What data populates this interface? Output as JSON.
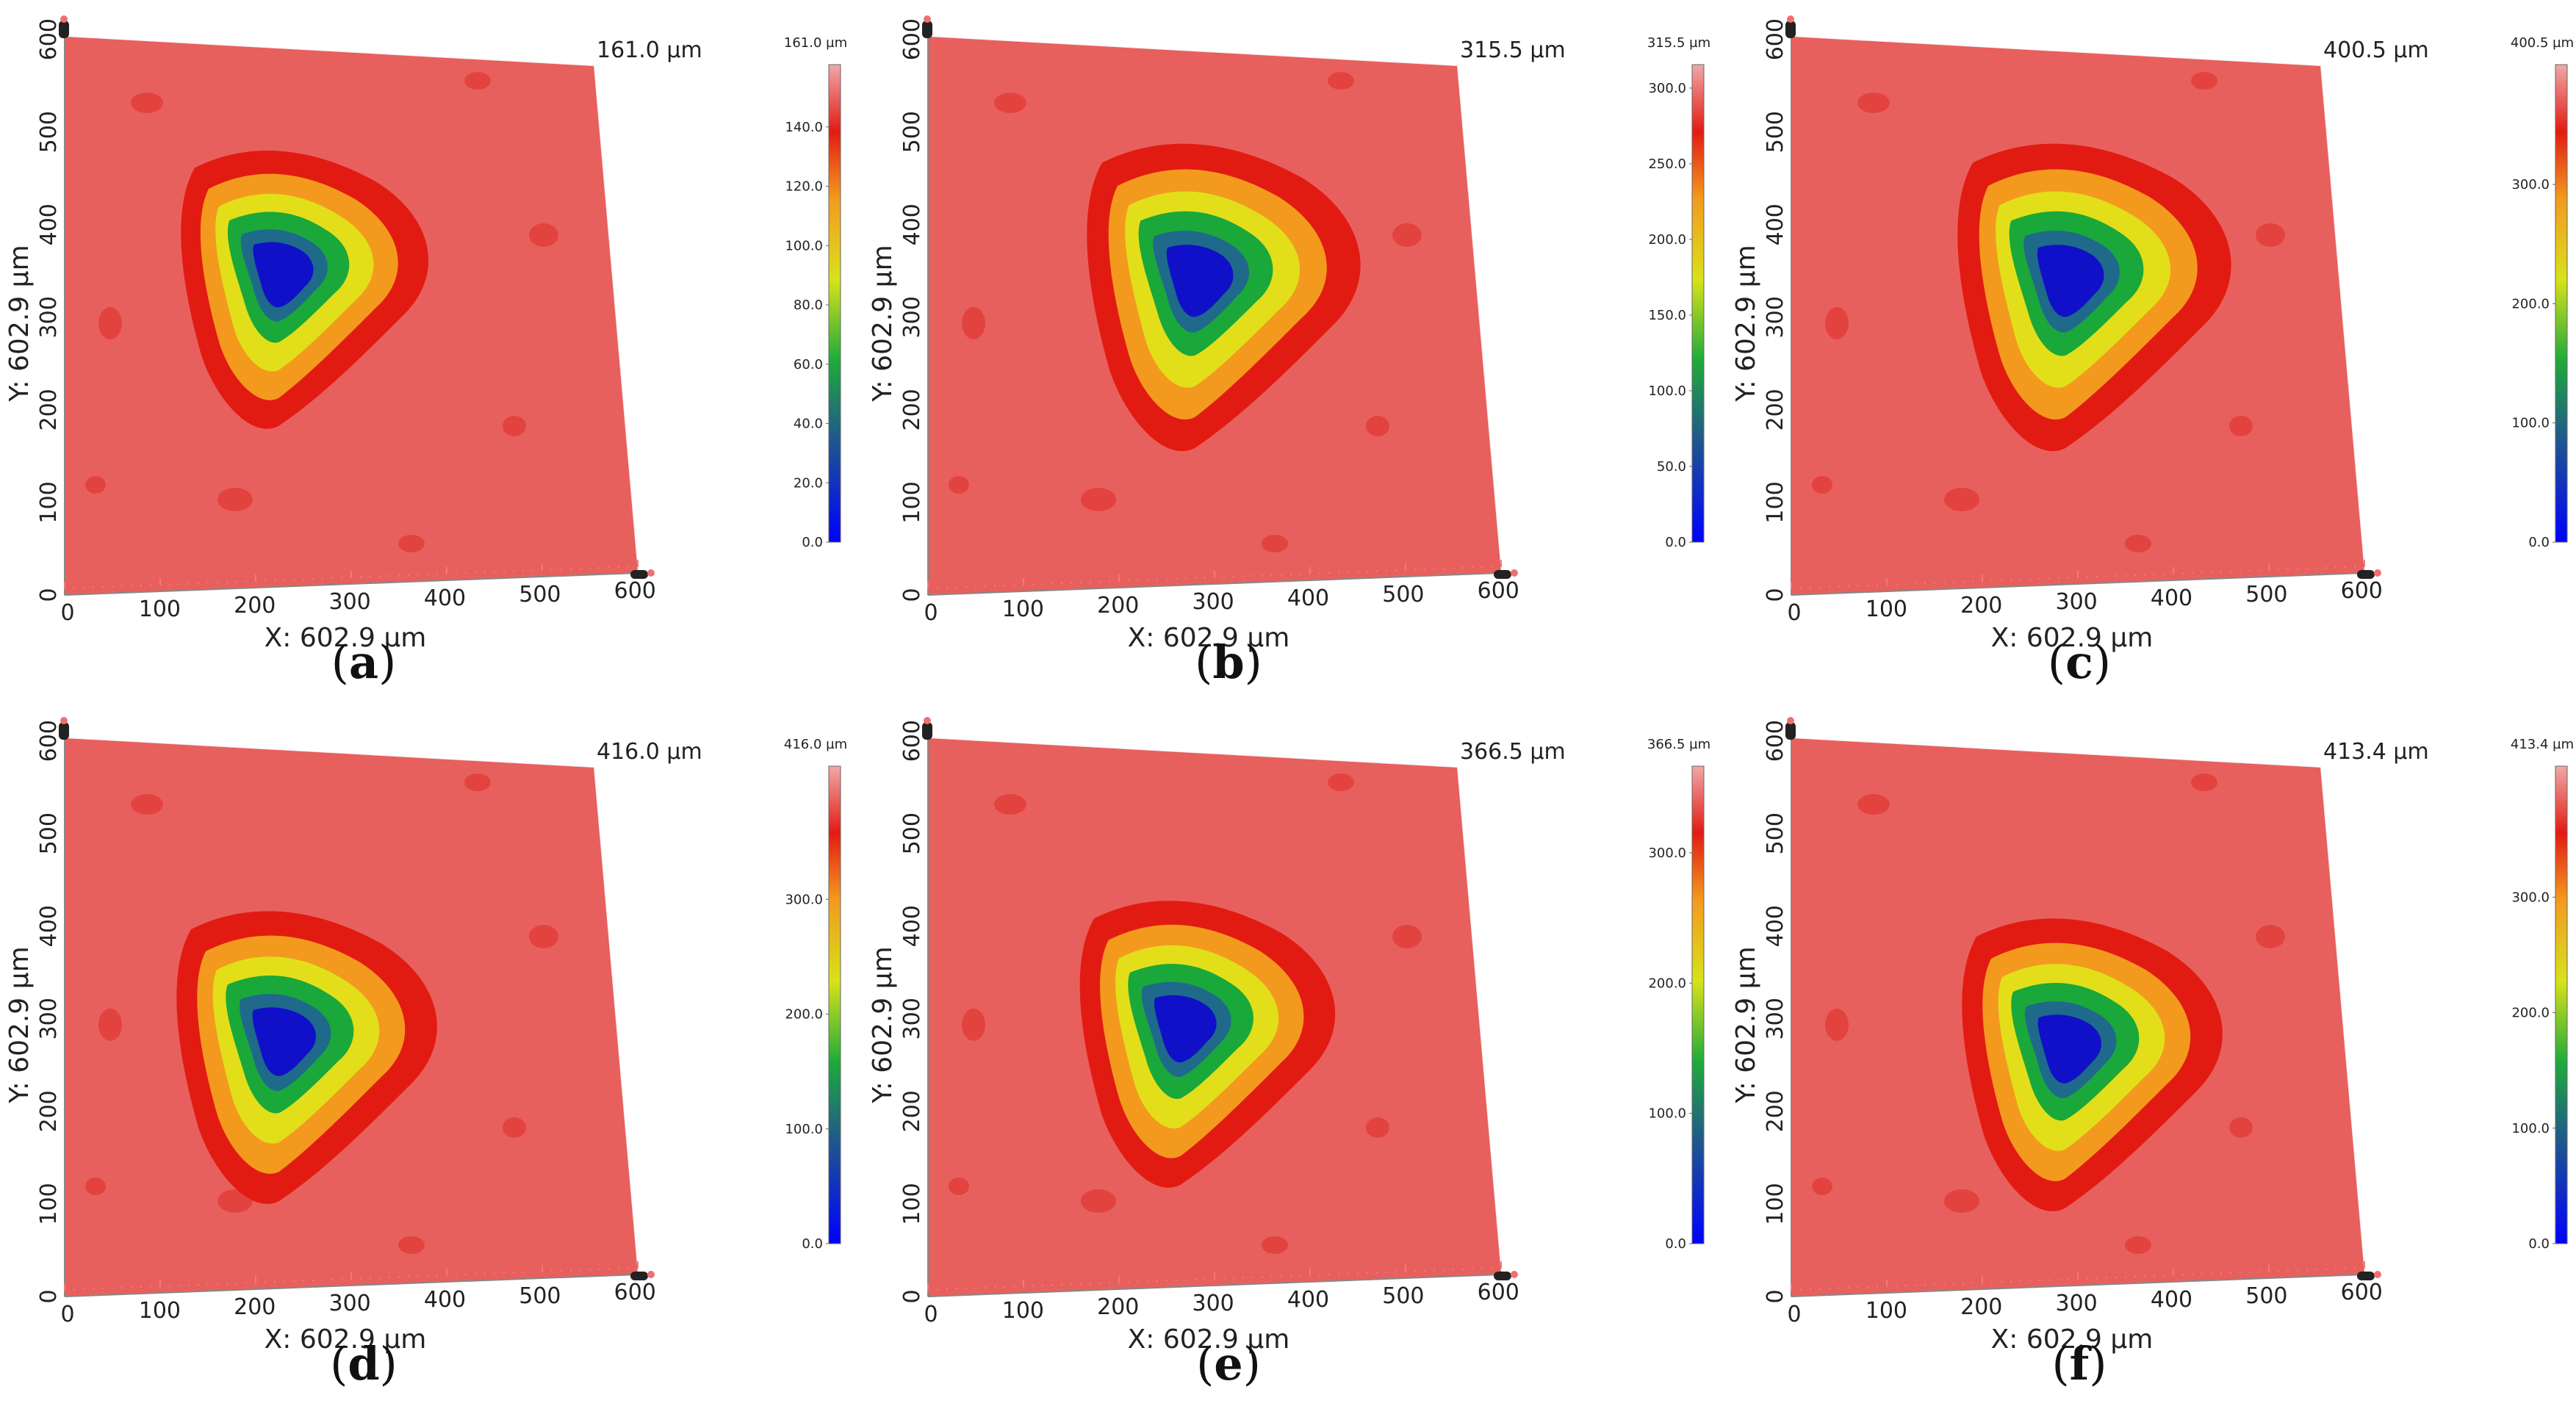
{
  "figure": {
    "panels": [
      {
        "id": "a",
        "caption_letter": "a",
        "z_max_label": "161.0 µm",
        "colorbar_top": "161.0 µm",
        "colorbar_ticks": [
          "140.0",
          "120.0",
          "100.0",
          "80.0",
          "60.0",
          "40.0",
          "20.0",
          "0.0"
        ],
        "colorbar_tick_values": [
          140,
          120,
          100,
          80,
          60,
          40,
          20,
          0
        ],
        "z_max": 161.0
      },
      {
        "id": "b",
        "caption_letter": "b",
        "z_max_label": "315.5 µm",
        "colorbar_top": "315.5 µm",
        "colorbar_ticks": [
          "300.0",
          "250.0",
          "200.0",
          "150.0",
          "100.0",
          "50.0",
          "0.0"
        ],
        "colorbar_tick_values": [
          300,
          250,
          200,
          150,
          100,
          50,
          0
        ],
        "z_max": 315.5
      },
      {
        "id": "c",
        "caption_letter": "c",
        "z_max_label": "400.5 µm",
        "colorbar_top": "400.5 µm",
        "colorbar_ticks": [
          "300.0",
          "200.0",
          "100.0",
          "0.0"
        ],
        "colorbar_tick_values": [
          300,
          200,
          100,
          0
        ],
        "z_max": 400.5
      },
      {
        "id": "d",
        "caption_letter": "d",
        "z_max_label": "416.0 µm",
        "colorbar_top": "416.0 µm",
        "colorbar_ticks": [
          "300.0",
          "200.0",
          "100.0",
          "0.0"
        ],
        "colorbar_tick_values": [
          300,
          200,
          100,
          0
        ],
        "z_max": 416.0
      },
      {
        "id": "e",
        "caption_letter": "e",
        "z_max_label": "366.5 µm",
        "colorbar_top": "366.5 µm",
        "colorbar_ticks": [
          "300.0",
          "200.0",
          "100.0",
          "0.0"
        ],
        "colorbar_tick_values": [
          300,
          200,
          100,
          0
        ],
        "z_max": 366.5
      },
      {
        "id": "f",
        "caption_letter": "f",
        "z_max_label": "413.4 µm",
        "colorbar_top": "413.4 µm",
        "colorbar_ticks": [
          "300.0",
          "200.0",
          "100.0",
          "0.0"
        ],
        "colorbar_tick_values": [
          300,
          200,
          100,
          0
        ],
        "z_max": 413.4
      }
    ],
    "x_axis_label": "X: 602.9 µm",
    "y_axis_label": "Y: 602.9 µm",
    "x_ticks": [
      "0",
      "100",
      "200",
      "300",
      "400",
      "500",
      "600"
    ],
    "y_ticks": [
      "0",
      "100",
      "200",
      "300",
      "400",
      "500",
      "600"
    ],
    "colors": {
      "surface": "#e8605e",
      "surface_light": "#f08a86",
      "pit_red": "#e21b12",
      "pit_orange": "#f39a1e",
      "pit_yellow": "#e6e21a",
      "pit_green": "#1aa83a",
      "pit_cyan": "#1f8a8a",
      "pit_blue": "#1414c8"
    }
  }
}
